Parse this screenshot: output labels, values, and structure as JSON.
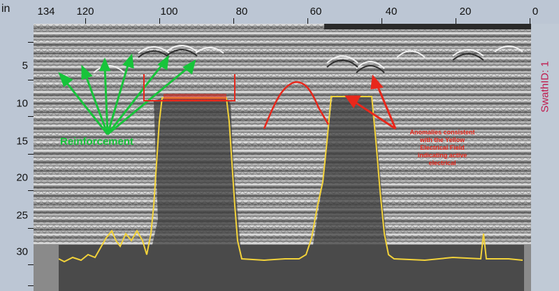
{
  "ruler": {
    "unit": "in",
    "top_ticks": [
      "134",
      "120",
      "100",
      "80",
      "60",
      "40",
      "20",
      "0"
    ],
    "left_ticks": [
      "5",
      "10",
      "15",
      "20",
      "25",
      "30"
    ]
  },
  "swath": {
    "label": "SwathID: 1"
  },
  "annotations": {
    "reinforcement": "Reinforcement",
    "bracket_label": "",
    "anomaly_text": [
      "Anomalies consistent",
      "with the Yellow",
      "Electrical Field",
      "indicating active",
      "electrical"
    ]
  },
  "colors": {
    "green": "#17c43a",
    "red": "#e8271b",
    "yellow": "#f2d23a",
    "field_fill": "#3f3f3f",
    "swath_text": "#c0184c"
  }
}
